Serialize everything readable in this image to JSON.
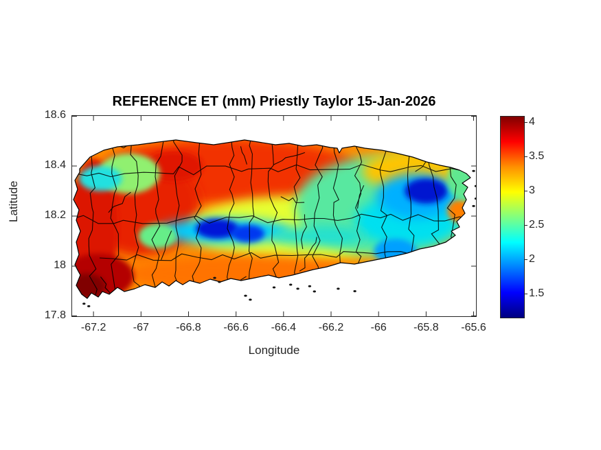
{
  "chart_data": {
    "type": "heatmap",
    "title": "REFERENCE ET (mm) Priestly Taylor 15-Jan-2026",
    "xlabel": "Longitude",
    "ylabel": "Latitude",
    "xlim": [
      -67.29,
      -65.59
    ],
    "ylim": [
      17.8,
      18.6
    ],
    "x_ticks": [
      -67.2,
      -67.0,
      -66.8,
      -66.6,
      -66.4,
      -66.2,
      -66.0,
      -65.8,
      -65.6
    ],
    "x_tick_labels": [
      "-67.2",
      "-67",
      "-66.8",
      "-66.6",
      "-66.4",
      "-66.2",
      "-66",
      "-65.8",
      "-65.6"
    ],
    "y_ticks": [
      18.6,
      18.4,
      18.2,
      18.0,
      17.8
    ],
    "y_tick_labels": [
      "18.6",
      "18.4",
      "18.2",
      "18",
      "17.8"
    ],
    "grid": false,
    "region_name": "Puerto Rico",
    "map_extent": {
      "west": -67.27,
      "east": -65.6,
      "south": 17.87,
      "north": 18.51
    },
    "colorbar": {
      "colormap": "jet",
      "range": [
        1.16,
        4.09
      ],
      "ticks": [
        4,
        3.5,
        3,
        2.5,
        2,
        1.5
      ],
      "tick_labels": [
        "4",
        "3.5",
        "3",
        "2.5",
        "2",
        "1.5"
      ],
      "position": "right",
      "gradient_stops_top_to_bottom": [
        {
          "color": "#800000",
          "pos": 0
        },
        {
          "color": "#ff0000",
          "pos": 12.5
        },
        {
          "color": "#ff9000",
          "pos": 25
        },
        {
          "color": "#ffff00",
          "pos": 37.5
        },
        {
          "color": "#80ff80",
          "pos": 50
        },
        {
          "color": "#00ffff",
          "pos": 62.5
        },
        {
          "color": "#0000ff",
          "pos": 87.5
        },
        {
          "color": "#000080",
          "pos": 100
        }
      ]
    },
    "base_region": {
      "name": "island-base",
      "value": 3.2,
      "color": "#ff9000"
    },
    "regions": [
      {
        "name": "north-red-band",
        "lon": -66.63,
        "lat": 18.38,
        "rlon": 0.55,
        "rlat": 0.13,
        "value": 3.6,
        "color": "#f23000"
      },
      {
        "name": "northwest-red",
        "lon": -67.0,
        "lat": 18.24,
        "rlon": 0.25,
        "rlat": 0.2,
        "value": 3.7,
        "color": "#e82400"
      },
      {
        "name": "arecibo-red-hotspot",
        "lon": -66.86,
        "lat": 18.4,
        "rlon": 0.12,
        "rlat": 0.06,
        "value": 3.8,
        "color": "#e01400"
      },
      {
        "name": "west-coast-red",
        "lon": -67.2,
        "lat": 18.15,
        "rlon": 0.1,
        "rlat": 0.28,
        "value": 3.8,
        "color": "#dc1400"
      },
      {
        "name": "central-yellow-band",
        "lon": -66.35,
        "lat": 18.15,
        "rlon": 0.45,
        "rlat": 0.13,
        "value": 2.9,
        "color": "#e6ff30"
      },
      {
        "name": "east-green-field",
        "lon": -65.97,
        "lat": 18.24,
        "rlon": 0.38,
        "rlat": 0.2,
        "value": 2.5,
        "color": "#58e8a0"
      },
      {
        "name": "north-yellow-east",
        "lon": -65.85,
        "lat": 18.38,
        "rlon": 0.22,
        "rlat": 0.08,
        "value": 3.1,
        "color": "#ffc400"
      },
      {
        "name": "south-coast-orange",
        "lon": -66.58,
        "lat": 17.97,
        "rlon": 0.5,
        "rlat": 0.075,
        "value": 3.4,
        "color": "#ff7300"
      },
      {
        "name": "southwest-dark-red",
        "lon": -67.18,
        "lat": 17.96,
        "rlon": 0.15,
        "rlat": 0.09,
        "value": 4.0,
        "color": "#b40000"
      },
      {
        "name": "southwest-maroon-core",
        "lon": -67.23,
        "lat": 17.92,
        "rlon": 0.08,
        "rlat": 0.05,
        "value": 4.1,
        "color": "#800000"
      },
      {
        "name": "east-cyan-field",
        "lon": -65.88,
        "lat": 18.18,
        "rlon": 0.22,
        "rlat": 0.1,
        "value": 2.2,
        "color": "#00e0f0"
      },
      {
        "name": "central-cyan-streak",
        "lon": -66.65,
        "lat": 18.14,
        "rlon": 0.28,
        "rlat": 0.05,
        "value": 2.1,
        "color": "#00ccff"
      },
      {
        "name": "central-cyan-streak-east",
        "lon": -66.25,
        "lat": 18.12,
        "rlon": 0.2,
        "rlat": 0.04,
        "value": 2.3,
        "color": "#20e0d0"
      },
      {
        "name": "nw-green-halo",
        "lon": -67.05,
        "lat": 18.37,
        "rlon": 0.13,
        "rlat": 0.08,
        "value": 2.7,
        "color": "#90f070"
      },
      {
        "name": "northwest-cyan",
        "lon": -67.17,
        "lat": 18.35,
        "rlon": 0.09,
        "rlat": 0.05,
        "value": 2.3,
        "color": "#20e0e0"
      },
      {
        "name": "maricao-green",
        "lon": -66.93,
        "lat": 18.12,
        "rlon": 0.08,
        "rlat": 0.05,
        "value": 2.6,
        "color": "#66ee88"
      },
      {
        "name": "el-yunque-cyan-halo",
        "lon": -65.84,
        "lat": 18.28,
        "rlon": 0.17,
        "rlat": 0.09,
        "value": 2.0,
        "color": "#00b0ff"
      },
      {
        "name": "el-yunque-dark-blue",
        "lon": -65.8,
        "lat": 18.3,
        "rlon": 0.09,
        "rlat": 0.05,
        "value": 1.35,
        "color": "#0018d0"
      },
      {
        "name": "cordillera-dark-blue-west",
        "lon": -66.68,
        "lat": 18.15,
        "rlon": 0.09,
        "rlat": 0.04,
        "value": 1.45,
        "color": "#0018d8"
      },
      {
        "name": "cordillera-dark-blue-east",
        "lon": -66.55,
        "lat": 18.13,
        "rlon": 0.07,
        "rlat": 0.035,
        "value": 1.6,
        "color": "#0038f0"
      },
      {
        "name": "southeast-blue",
        "lon": -65.93,
        "lat": 18.06,
        "rlon": 0.09,
        "rlat": 0.05,
        "value": 1.9,
        "color": "#00a0ff"
      },
      {
        "name": "east-coast-orange",
        "lon": -65.66,
        "lat": 18.22,
        "rlon": 0.05,
        "rlat": 0.045,
        "value": 3.3,
        "color": "#ff8000"
      },
      {
        "name": "fajardo-green",
        "lon": -65.65,
        "lat": 18.35,
        "rlon": 0.06,
        "rlat": 0.08,
        "value": 2.6,
        "color": "#60e890"
      }
    ],
    "islets": [
      [
        -66.69,
        17.953
      ],
      [
        -66.67,
        17.937
      ],
      [
        -66.56,
        17.882
      ],
      [
        -66.54,
        17.866
      ],
      [
        -66.44,
        17.915
      ],
      [
        -66.37,
        17.926
      ],
      [
        -66.34,
        17.91
      ],
      [
        -66.29,
        17.92
      ],
      [
        -66.27,
        17.899
      ],
      [
        -66.17,
        17.91
      ],
      [
        -66.1,
        17.9
      ],
      [
        -65.6,
        18.38
      ],
      [
        -65.59,
        18.32
      ],
      [
        -65.59,
        18.27
      ],
      [
        -65.6,
        18.24
      ],
      [
        -67.24,
        17.85
      ],
      [
        -67.22,
        17.84
      ]
    ],
    "boundary_lines": {
      "description": "municipio boundaries",
      "color": "#000000"
    },
    "colors": {
      "background": "#ffffff",
      "axis_text": "#262626",
      "title_text": "#000000",
      "coastline": "#000000"
    }
  }
}
